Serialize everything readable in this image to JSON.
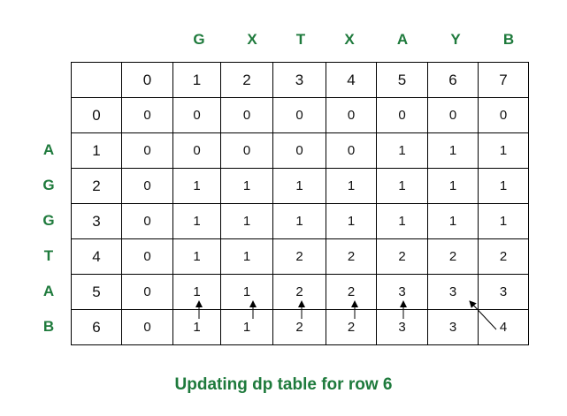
{
  "column_letters": [
    "G",
    "X",
    "T",
    "X",
    "A",
    "Y",
    "B"
  ],
  "row_letters": [
    "A",
    "G",
    "G",
    "T",
    "A",
    "B"
  ],
  "table": {
    "header": [
      "",
      "0",
      "1",
      "2",
      "3",
      "4",
      "5",
      "6",
      "7"
    ],
    "rows": [
      [
        "0",
        "0",
        "0",
        "0",
        "0",
        "0",
        "0",
        "0",
        "0"
      ],
      [
        "1",
        "0",
        "0",
        "0",
        "0",
        "0",
        "1",
        "1",
        "1"
      ],
      [
        "2",
        "0",
        "1",
        "1",
        "1",
        "1",
        "1",
        "1",
        "1"
      ],
      [
        "3",
        "0",
        "1",
        "1",
        "1",
        "1",
        "1",
        "1",
        "1"
      ],
      [
        "4",
        "0",
        "1",
        "1",
        "2",
        "2",
        "2",
        "2",
        "2"
      ],
      [
        "5",
        "0",
        "1",
        "1",
        "2",
        "2",
        "3",
        "3",
        "3"
      ],
      [
        "6",
        "0",
        "1",
        "1",
        "2",
        "2",
        "3",
        "3",
        "4"
      ]
    ]
  },
  "caption": "Updating dp table for row 6",
  "colors": {
    "accent": "#1e7a3c",
    "grid": "#000000",
    "text": "#111111"
  }
}
